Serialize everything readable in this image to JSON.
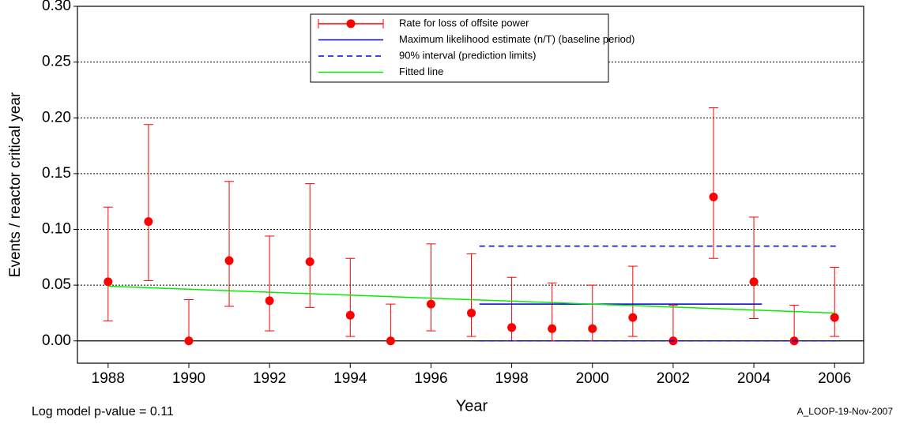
{
  "chart_data": {
    "type": "errorbar",
    "xlabel": "Year",
    "ylabel": "Events / reactor critical year",
    "annotations": [
      "Log model p-value = 0.11",
      "A_LOOP-19-Nov-2007"
    ],
    "xlim": [
      1987.24,
      2006.72
    ],
    "xticks": [
      1988,
      1990,
      1992,
      1994,
      1996,
      1998,
      2000,
      2002,
      2004,
      2006
    ],
    "ylim": [
      -0.02,
      0.3
    ],
    "yticks": [
      {
        "value": 0,
        "label": "0.00"
      },
      0.05,
      {
        "value": 0.1,
        "label": "0.10"
      },
      0.15,
      {
        "value": 0.2,
        "label": "0.20"
      },
      0.25,
      {
        "value": 0.3,
        "label": "0.30"
      }
    ],
    "grid": true,
    "series": [
      {
        "name": "Rate for loss of offsite power",
        "kind": "errorbar",
        "color": "#ff0000",
        "x": [
          1988,
          1989,
          1990,
          1991,
          1992,
          1993,
          1994,
          1995,
          1996,
          1997,
          1998,
          1999,
          2000,
          2001,
          2002,
          2003,
          2004,
          2005,
          2006
        ],
        "values": [
          0.053,
          0.107,
          0,
          0.072,
          0.036,
          0.071,
          0.023,
          0,
          0.033,
          0.025,
          0.012,
          0.011,
          0.011,
          0.021,
          0,
          0.129,
          0.053,
          0,
          0.021
        ],
        "lower": [
          0.018,
          0.054,
          0,
          0.031,
          0.009,
          0.03,
          0.004,
          0,
          0.009,
          0.004,
          0,
          0,
          0,
          0.004,
          0,
          0.074,
          0.02,
          0,
          0.004
        ],
        "upper": [
          0.12,
          0.194,
          0.037,
          0.143,
          0.094,
          0.141,
          0.074,
          0.033,
          0.087,
          0.078,
          0.057,
          0.052,
          0.05,
          0.067,
          0.032,
          0.209,
          0.111,
          0.032,
          0.066
        ]
      },
      {
        "name": "Maximum likelihood estimate (n/T) (baseline period)",
        "kind": "line",
        "color": "#0000cc",
        "x": [
          1997.2,
          2004.2
        ],
        "values": [
          0.033,
          0.033
        ]
      },
      {
        "name": "90% interval (prediction limits)",
        "kind": "dashed",
        "color": "#0000ff",
        "x": [
          1997.2,
          2006.1
        ],
        "values": [
          0.085,
          0.085
        ],
        "lower": [
          0,
          0
        ]
      },
      {
        "name": "Fitted line",
        "kind": "line",
        "color": "#00ee00",
        "x": [
          1988,
          2006
        ],
        "values": [
          0.049,
          0.025
        ]
      }
    ]
  }
}
